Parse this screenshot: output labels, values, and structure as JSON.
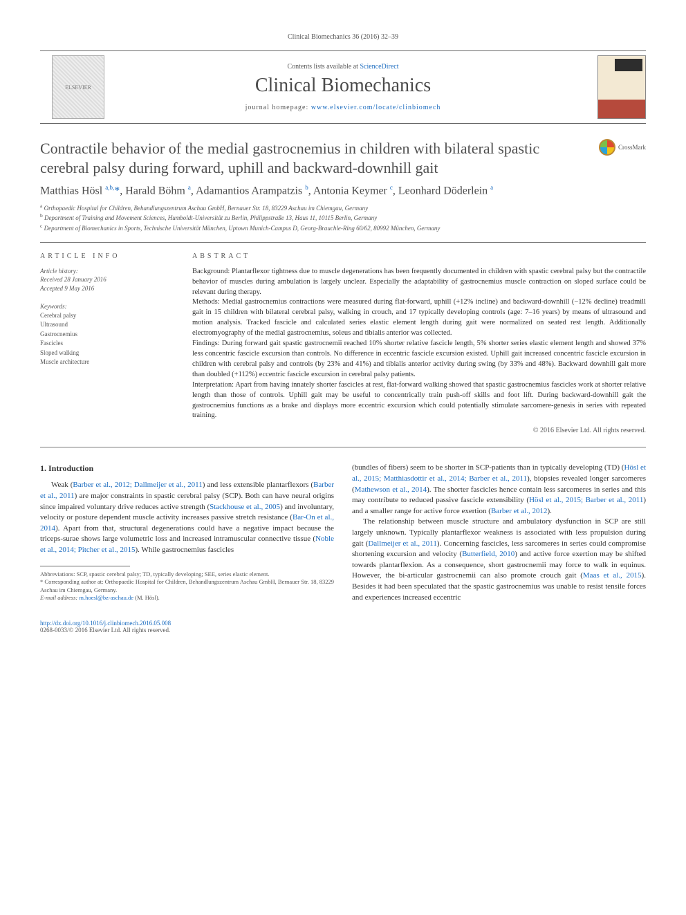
{
  "journal": {
    "header_ref": "Clinical Biomechanics 36 (2016) 32–39",
    "contents_prefix": "Contents lists available at ",
    "contents_link_text": "ScienceDirect",
    "name": "Clinical Biomechanics",
    "homepage_prefix": "journal homepage: ",
    "homepage_url": "www.elsevier.com/locate/clinbiomech",
    "cover_label": "CLINICAL BIOMECHANICS"
  },
  "article": {
    "title": "Contractile behavior of the medial gastrocnemius in children with bilateral spastic cerebral palsy during forward, uphill and backward-downhill gait",
    "crossmark_label": "CrossMark",
    "authors_html": "Matthias Hösl <sup>a,b,</sup><span class=\"star\">*</span>, Harald Böhm <sup>a</sup>, Adamantios Arampatzis <sup>b</sup>, Antonia Keymer <sup>c</sup>, Leonhard Döderlein <sup>a</sup>",
    "affiliations": [
      "a  Orthopaedic Hospital for Children, Behandlungszentrum Aschau GmbH, Bernauer Str. 18, 83229 Aschau im Chiemgau, Germany",
      "b  Department of Training and Movement Sciences, Humboldt-Universität zu Berlin, Philippstraße 13, Haus 11, 10115 Berlin, Germany",
      "c  Department of Biomechanics in Sports, Technische Universität München, Uptown Munich-Campus D, Georg-Brauchle-Ring 60/62, 80992 München, Germany"
    ]
  },
  "meta": {
    "info_label": "ARTICLE INFO",
    "history_label": "Article history:",
    "received": "Received 28 January 2016",
    "accepted": "Accepted 9 May 2016",
    "keywords_label": "Keywords:",
    "keywords": [
      "Cerebral palsy",
      "Ultrasound",
      "Gastrocnemius",
      "Fascicles",
      "Sloped walking",
      "Muscle architecture"
    ]
  },
  "abstract": {
    "label": "ABSTRACT",
    "background": "Background: Plantarflexor tightness due to muscle degenerations has been frequently documented in children with spastic cerebral palsy but the contractile behavior of muscles during ambulation is largely unclear. Especially the adaptability of gastrocnemius muscle contraction on sloped surface could be relevant during therapy.",
    "methods": "Methods: Medial gastrocnemius contractions were measured during flat-forward, uphill (+12% incline) and backward-downhill (−12% decline) treadmill gait in 15 children with bilateral cerebral palsy, walking in crouch, and 17 typically developing controls (age: 7–16 years) by means of ultrasound and motion analysis. Tracked fascicle and calculated series elastic element length during gait were normalized on seated rest length. Additionally electromyography of the medial gastrocnemius, soleus and tibialis anterior was collected.",
    "findings": "Findings: During forward gait spastic gastrocnemii reached 10% shorter relative fascicle length, 5% shorter series elastic element length and showed 37% less concentric fascicle excursion than controls. No difference in eccentric fascicle excursion existed. Uphill gait increased concentric fascicle excursion in children with cerebral palsy and controls (by 23% and 41%) and tibialis anterior activity during swing (by 33% and 48%). Backward downhill gait more than doubled (+112%) eccentric fascicle excursion in cerebral palsy patients.",
    "interpretation": "Interpretation: Apart from having innately shorter fascicles at rest, flat-forward walking showed that spastic gastrocnemius fascicles work at shorter relative length than those of controls. Uphill gait may be useful to concentrically train push-off skills and foot lift. During backward-downhill gait the gastrocnemius functions as a brake and displays more eccentric excursion which could potentially stimulate sarcomere-genesis in series with repeated training.",
    "copyright": "© 2016 Elsevier Ltd. All rights reserved."
  },
  "body": {
    "intro_heading": "1. Introduction",
    "left_p1_pre": "Weak (",
    "left_ref1": "Barber et al., 2012; Dallmeijer et al., 2011",
    "left_p1_mid1": ") and less extensible plantarflexors (",
    "left_ref2": "Barber et al., 2011",
    "left_p1_mid2": ") are major constraints in spastic cerebral palsy (SCP). Both can have neural origins since impaired voluntary drive reduces active strength (",
    "left_ref3": "Stackhouse et al., 2005",
    "left_p1_mid3": ") and involuntary, velocity or posture dependent muscle activity increases passive stretch resistance (",
    "left_ref4": "Bar-On et al., 2014",
    "left_p1_mid4": "). Apart from that, structural degenerations could have a negative impact because the triceps-surae shows large volumetric loss and increased intramuscular connective tissue (",
    "left_ref5": "Noble et al., 2014; Pitcher et al., 2015",
    "left_p1_end": "). While gastrocnemius fascicles",
    "right_p1_pre": "(bundles of fibers) seem to be shorter in SCP-patients than in typically developing (TD) (",
    "right_ref1": "Hösl et al., 2015; Matthiasdottir et al., 2014; Barber et al., 2011",
    "right_p1_mid1": "), biopsies revealed longer sarcomeres (",
    "right_ref2": "Mathewson et al., 2014",
    "right_p1_mid2": "). The shorter fascicles hence contain less sarcomeres in series and this may contribute to reduced passive fascicle extensibility (",
    "right_ref3": "Hösl et al., 2015; Barber et al., 2011",
    "right_p1_mid3": ") and a smaller range for active force exertion (",
    "right_ref4": "Barber et al., 2012",
    "right_p1_end": ").",
    "right_p2_pre": "The relationship between muscle structure and ambulatory dysfunction in SCP are still largely unknown. Typically plantarflexor weakness is associated with less propulsion during gait (",
    "right_ref5": "Dallmeijer et al., 2011",
    "right_p2_mid1": "). Concerning fascicles, less sarcomeres in series could compromise shortening excursion and velocity (",
    "right_ref6": "Butterfield, 2010",
    "right_p2_mid2": ") and active force exertion may be shifted towards plantarflexion. As a consequence, short gastrocnemii may force to walk in equinus. However, the bi-articular gastrocnemii can also promote crouch gait (",
    "right_ref7": "Maas et al., 2015",
    "right_p2_end": "). Besides it had been speculated that the spastic gastrocnemius was unable to resist tensile forces and experiences increased eccentric"
  },
  "footnotes": {
    "abbrev": "Abbreviations: SCP, spastic cerebral palsy; TD, typically developing; SEE, series elastic element.",
    "corresponding": "*  Corresponding author at: Orthopaedic Hospital for Children, Behandlungszentrum Aschau GmbH, Bernauer Str. 18, 83229 Aschau im Chiemgau, Germany.",
    "email_label": "E-mail address: ",
    "email": "m.hoesl@bz-aschau.de",
    "email_suffix": " (M. Hösl)."
  },
  "footer": {
    "doi": "http://dx.doi.org/10.1016/j.clinbiomech.2016.05.008",
    "issn_line": "0268-0033/© 2016 Elsevier Ltd. All rights reserved."
  },
  "colors": {
    "link": "#1a6bbf",
    "text": "#333333",
    "muted": "#555555",
    "rule": "#777777"
  }
}
